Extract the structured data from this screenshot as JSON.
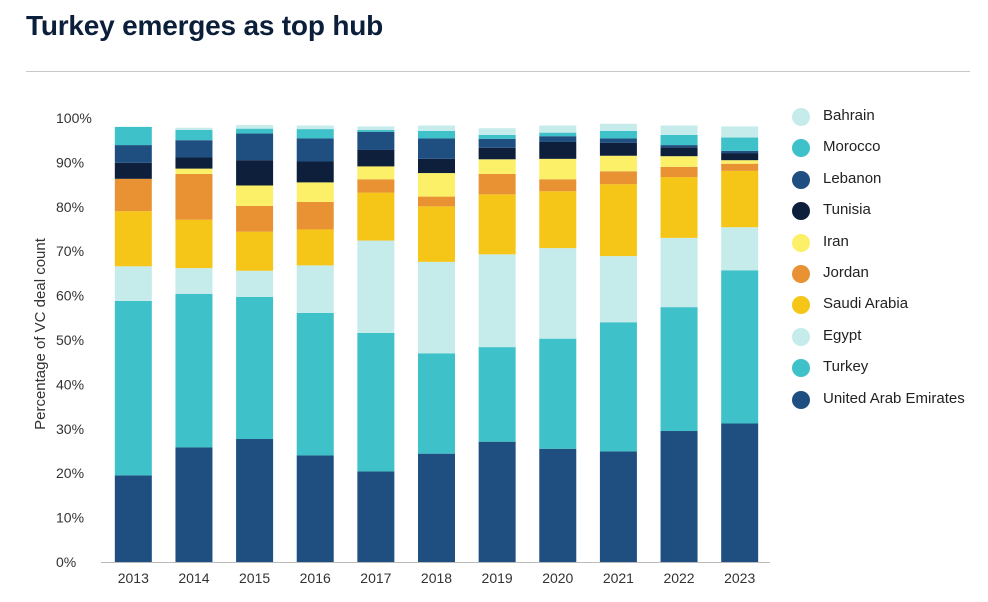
{
  "title": "Turkey emerges as top hub",
  "chart_data": {
    "type": "bar",
    "stacked": true,
    "ylabel": "Percentage of VC deal count",
    "ylim": [
      0,
      100
    ],
    "yticks": [
      "0%",
      "10%",
      "20%",
      "30%",
      "40%",
      "50%",
      "60%",
      "70%",
      "80%",
      "90%",
      "100%"
    ],
    "categories": [
      "2013",
      "2014",
      "2015",
      "2016",
      "2017",
      "2018",
      "2019",
      "2020",
      "2021",
      "2022",
      "2023"
    ],
    "legend_position": "right",
    "series": [
      {
        "name": "United Arab Emirates",
        "color": "#1f4e80",
        "values": [
          19.5,
          25.8,
          27.7,
          24.0,
          20.4,
          24.4,
          27.1,
          25.5,
          24.9,
          29.5,
          31.2
        ]
      },
      {
        "name": "Turkey",
        "color": "#3ec1c8",
        "values": [
          39.3,
          34.6,
          32.0,
          32.1,
          31.2,
          22.6,
          21.3,
          24.8,
          29.1,
          27.9,
          34.5
        ]
      },
      {
        "name": "Egypt",
        "color": "#c5ebea",
        "values": [
          7.8,
          5.8,
          5.9,
          10.7,
          20.8,
          20.6,
          20.9,
          20.4,
          14.9,
          15.6,
          9.7
        ]
      },
      {
        "name": "Saudi Arabia",
        "color": "#f5c518",
        "values": [
          12.4,
          10.9,
          8.8,
          8.1,
          10.8,
          12.5,
          13.5,
          12.8,
          16.2,
          13.7,
          12.7
        ]
      },
      {
        "name": "Jordan",
        "color": "#e89233",
        "values": [
          7.3,
          10.3,
          5.8,
          6.2,
          3.0,
          2.2,
          4.6,
          2.7,
          2.9,
          2.3,
          1.6
        ]
      },
      {
        "name": "Iran",
        "color": "#fbf068",
        "values": [
          0.0,
          1.2,
          4.6,
          4.4,
          2.9,
          5.3,
          3.3,
          4.6,
          3.5,
          2.4,
          0.8
        ]
      },
      {
        "name": "Tunisia",
        "color": "#0d1f3b",
        "values": [
          3.6,
          2.5,
          5.7,
          4.7,
          3.7,
          3.2,
          2.6,
          3.8,
          2.9,
          2.0,
          1.6
        ]
      },
      {
        "name": "Lebanon",
        "color": "#1f4e80",
        "values": [
          4.0,
          3.9,
          6.0,
          5.2,
          4.1,
          4.6,
          2.0,
          1.3,
          1.0,
          0.5,
          0.5
        ]
      },
      {
        "name": "Morocco",
        "color": "#3ec1c8",
        "values": [
          4.1,
          2.3,
          1.1,
          2.1,
          0.4,
          1.7,
          0.9,
          0.8,
          1.7,
          2.3,
          3.0
        ]
      },
      {
        "name": "Bahrain",
        "color": "#c5ebea",
        "values": [
          0.0,
          0.5,
          0.8,
          0.8,
          0.8,
          1.2,
          1.5,
          1.6,
          1.6,
          2.1,
          2.5
        ]
      }
    ]
  },
  "legend": [
    {
      "label": "Bahrain",
      "color": "#c5ebea"
    },
    {
      "label": "Morocco",
      "color": "#3ec1c8"
    },
    {
      "label": "Lebanon",
      "color": "#1f4e80"
    },
    {
      "label": "Tunisia",
      "color": "#0d1f3b"
    },
    {
      "label": "Iran",
      "color": "#fbf068"
    },
    {
      "label": "Jordan",
      "color": "#e89233"
    },
    {
      "label": "Saudi Arabia",
      "color": "#f5c518"
    },
    {
      "label": "Egypt",
      "color": "#c5ebea"
    },
    {
      "label": "Turkey",
      "color": "#3ec1c8"
    },
    {
      "label": "United Arab Emirates",
      "color": "#1f4e80"
    }
  ]
}
